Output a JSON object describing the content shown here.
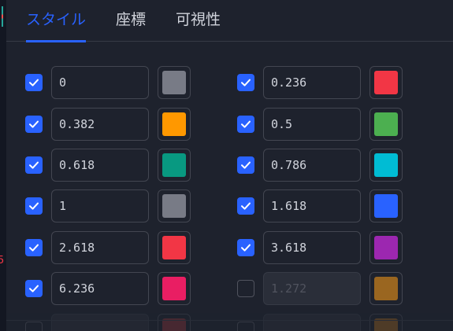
{
  "tabs": [
    {
      "label": "スタイル",
      "active": true
    },
    {
      "label": "座標",
      "active": false
    },
    {
      "label": "可視性",
      "active": false
    }
  ],
  "levels": [
    {
      "checked": true,
      "value": "0",
      "color": "#787b86",
      "enabled": true
    },
    {
      "checked": true,
      "value": "0.236",
      "color": "#f23645",
      "enabled": true
    },
    {
      "checked": true,
      "value": "0.382",
      "color": "#ff9800",
      "enabled": true
    },
    {
      "checked": true,
      "value": "0.5",
      "color": "#4caf50",
      "enabled": true
    },
    {
      "checked": true,
      "value": "0.618",
      "color": "#089981",
      "enabled": true
    },
    {
      "checked": true,
      "value": "0.786",
      "color": "#00bcd4",
      "enabled": true
    },
    {
      "checked": true,
      "value": "1",
      "color": "#787b86",
      "enabled": true
    },
    {
      "checked": true,
      "value": "1.618",
      "color": "#2962ff",
      "enabled": true
    },
    {
      "checked": true,
      "value": "2.618",
      "color": "#f23645",
      "enabled": true
    },
    {
      "checked": true,
      "value": "3.618",
      "color": "#9c27b0",
      "enabled": true
    },
    {
      "checked": true,
      "value": "6.236",
      "color": "#e91e63",
      "enabled": true
    },
    {
      "checked": false,
      "value": "1.272",
      "color": "#9a6620",
      "enabled": false
    },
    {
      "checked": false,
      "value": "",
      "color": "#7a2f37",
      "enabled": false
    },
    {
      "checked": false,
      "value": "",
      "color": "#8a5a1f",
      "enabled": false
    }
  ],
  "colors": {
    "accent": "#2962ff",
    "panel_bg": "#1e222d",
    "text": "#d1d4dc"
  }
}
